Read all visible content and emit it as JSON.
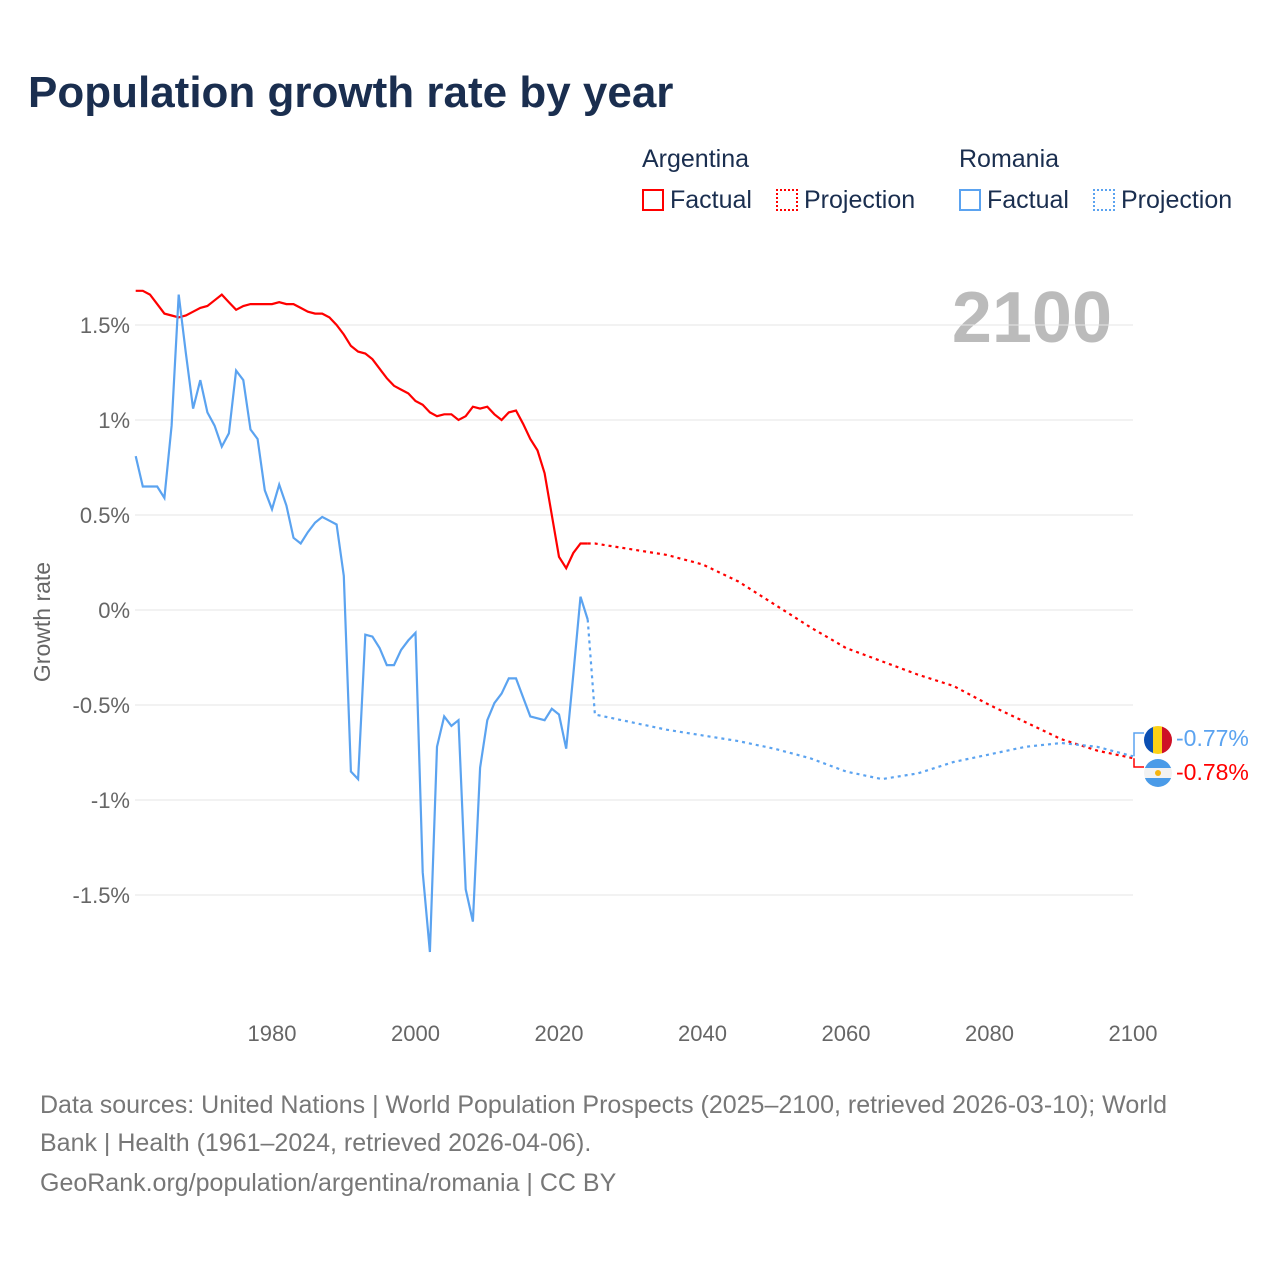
{
  "title": "Population growth rate by year",
  "legend": {
    "groups": [
      {
        "name": "Argentina",
        "factual": "Factual",
        "projection": "Projection",
        "color": "#ff0000"
      },
      {
        "name": "Romania",
        "factual": "Factual",
        "projection": "Projection",
        "color": "#5ba3f0"
      }
    ]
  },
  "year_label": "2100",
  "footer": {
    "line1": "Data sources: United Nations | World Population Prospects (2025–2100, retrieved 2026-03-10); World",
    "line2": "Bank | Health (1961–2024, retrieved 2026-04-06).",
    "line3": "GeoRank.org/population/argentina/romania | CC BY"
  },
  "chart_data": {
    "type": "line",
    "title": "Population growth rate by year",
    "xlabel": "",
    "ylabel": "Growth rate",
    "xlim": [
      1961,
      2100
    ],
    "ylim": [
      -2.0,
      1.8
    ],
    "xticks": [
      1980,
      2000,
      2020,
      2040,
      2060,
      2080,
      2100
    ],
    "yticks": [
      {
        "v": 1.5,
        "l": "1.5%"
      },
      {
        "v": 1,
        "l": "1%"
      },
      {
        "v": 0.5,
        "l": "0.5%"
      },
      {
        "v": 0,
        "l": "0%"
      },
      {
        "v": -0.5,
        "l": "-0.5%"
      },
      {
        "v": -1,
        "l": "-1%"
      },
      {
        "v": -1.5,
        "l": "-1.5%"
      }
    ],
    "series": [
      {
        "name": "Argentina",
        "color": "#ff0000",
        "end_label": "-0.78%",
        "factual": {
          "start": 1961,
          "values": [
            1.68,
            1.68,
            1.66,
            1.61,
            1.56,
            1.55,
            1.54,
            1.55,
            1.57,
            1.59,
            1.6,
            1.63,
            1.66,
            1.62,
            1.58,
            1.6,
            1.61,
            1.61,
            1.61,
            1.61,
            1.62,
            1.61,
            1.61,
            1.59,
            1.57,
            1.56,
            1.56,
            1.54,
            1.5,
            1.45,
            1.39,
            1.36,
            1.35,
            1.32,
            1.27,
            1.22,
            1.18,
            1.16,
            1.14,
            1.1,
            1.08,
            1.04,
            1.02,
            1.03,
            1.03,
            1.0,
            1.02,
            1.07,
            1.06,
            1.07,
            1.03,
            1.0,
            1.04,
            1.05,
            0.98,
            0.9,
            0.84,
            0.72,
            0.5,
            0.28,
            0.22,
            0.3,
            0.35,
            0.35
          ]
        },
        "projection": {
          "x": [
            2024,
            2025,
            2030,
            2035,
            2040,
            2045,
            2050,
            2055,
            2060,
            2065,
            2070,
            2075,
            2080,
            2085,
            2090,
            2095,
            2100
          ],
          "values": [
            0.35,
            0.35,
            0.32,
            0.29,
            0.24,
            0.15,
            0.03,
            -0.09,
            -0.2,
            -0.27,
            -0.34,
            -0.4,
            -0.5,
            -0.59,
            -0.68,
            -0.74,
            -0.78
          ]
        }
      },
      {
        "name": "Romania",
        "color": "#5ba3f0",
        "end_label": "-0.77%",
        "factual": {
          "start": 1961,
          "values": [
            0.81,
            0.65,
            0.65,
            0.65,
            0.59,
            0.97,
            1.66,
            1.35,
            1.06,
            1.21,
            1.04,
            0.97,
            0.86,
            0.93,
            1.26,
            1.21,
            0.95,
            0.9,
            0.63,
            0.53,
            0.66,
            0.55,
            0.38,
            0.35,
            0.41,
            0.46,
            0.49,
            0.47,
            0.45,
            0.18,
            -0.85,
            -0.89,
            -0.13,
            -0.14,
            -0.2,
            -0.29,
            -0.29,
            -0.21,
            -0.16,
            -0.12,
            -1.38,
            -1.8,
            -0.72,
            -0.56,
            -0.61,
            -0.58,
            -1.47,
            -1.64,
            -0.83,
            -0.58,
            -0.49,
            -0.44,
            -0.36,
            -0.36,
            -0.46,
            -0.56,
            -0.57,
            -0.58,
            -0.52,
            -0.55,
            -0.73,
            -0.34,
            0.07,
            -0.05
          ]
        },
        "projection": {
          "x": [
            2024,
            2025,
            2030,
            2035,
            2040,
            2045,
            2050,
            2055,
            2060,
            2065,
            2070,
            2075,
            2080,
            2085,
            2090,
            2095,
            2100
          ],
          "values": [
            -0.05,
            -0.55,
            -0.59,
            -0.63,
            -0.66,
            -0.69,
            -0.73,
            -0.78,
            -0.85,
            -0.89,
            -0.86,
            -0.8,
            -0.76,
            -0.72,
            -0.7,
            -0.72,
            -0.77
          ]
        }
      }
    ]
  }
}
